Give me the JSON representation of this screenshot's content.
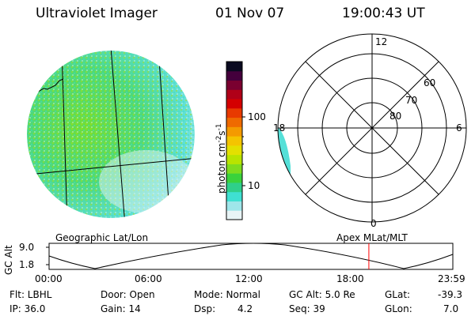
{
  "header": {
    "instrument": "Ultraviolet Imager",
    "date": "01 Nov 07",
    "time": "19:00:43 UT"
  },
  "colorbar": {
    "unit_label": "photon cm",
    "unit_exp1": "-2",
    "unit_s": "s",
    "unit_exp2": "-1",
    "ticks": [
      "100",
      "10"
    ],
    "colors": [
      "#e8f4f6",
      "#9fe6ea",
      "#3fe0d2",
      "#2fcf8a",
      "#3ad23c",
      "#7edc1e",
      "#b8e400",
      "#e3e000",
      "#f4c400",
      "#f49a00",
      "#ef6a00",
      "#e83a00",
      "#d40000",
      "#b00018",
      "#7a0030",
      "#44003c",
      "#0a0a20"
    ]
  },
  "polar": {
    "mlt_labels": {
      "top": "12",
      "left": "18",
      "right": "6",
      "bottom": "0"
    },
    "lat_labels": [
      "60",
      "70",
      "80"
    ]
  },
  "timeline": {
    "y_axis_label": "GC Alt",
    "y_ticks": [
      "9.0",
      "1.8"
    ],
    "left_caption": "Geographic Lat/Lon",
    "right_caption": "Apex MLat/MLT",
    "x_ticks": [
      "00:00",
      "06:00",
      "12:00",
      "18:00",
      "23:59"
    ],
    "marker_color": "#ff0000",
    "marker_time_fraction": 0.792
  },
  "info": {
    "filter": "Flt: LBHL",
    "ip": "IP: 36.0",
    "door": "Door: Open",
    "gain": "Gain: 14",
    "mode": "Mode: Normal",
    "dsp_label": "Dsp:",
    "dsp_value": "4.2",
    "gc_alt": "GC Alt: 5.0 Re",
    "seq": "Seq: 39",
    "glat_label": "GLat:",
    "glat_value": "-39.3",
    "glon_label": "GLon:",
    "glon_value": "7.0"
  }
}
